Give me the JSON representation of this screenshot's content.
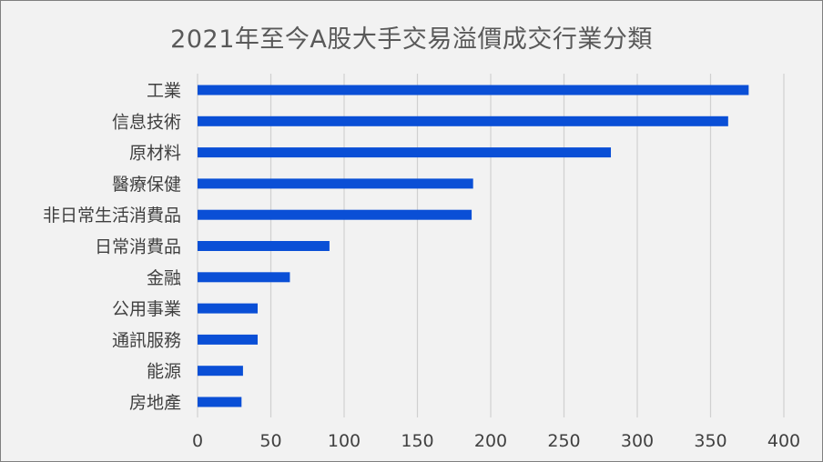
{
  "chart_data": {
    "type": "bar",
    "orientation": "horizontal",
    "title": "2021年至今A股大手交易溢價成交行業分類",
    "categories": [
      "工業",
      "信息技術",
      "原材料",
      "醫療保健",
      "非日常生活消費品",
      "日常消費品",
      "金融",
      "公用事業",
      "通訊服務",
      "能源",
      "房地產"
    ],
    "values": [
      376,
      362,
      282,
      188,
      187,
      90,
      63,
      41,
      41,
      31,
      30
    ],
    "xlim": [
      0,
      400
    ],
    "xticks": [
      0,
      50,
      100,
      150,
      200,
      250,
      300,
      350,
      400
    ],
    "grid": true,
    "bar_color": "#0a4fd6",
    "xlabel": "",
    "ylabel": ""
  }
}
